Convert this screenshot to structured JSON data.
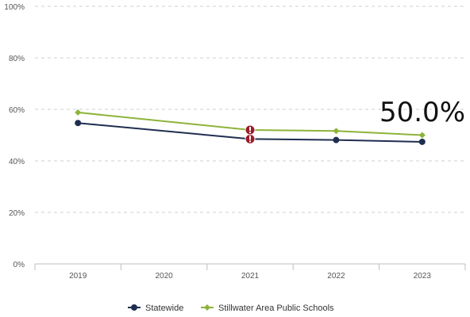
{
  "chart_data": {
    "type": "line",
    "categories": [
      "2019",
      "2020",
      "2021",
      "2022",
      "2023"
    ],
    "y_ticks": [
      "0%",
      "20%",
      "40%",
      "60%",
      "80%",
      "100%"
    ],
    "ylim": [
      0,
      100
    ],
    "grid": true,
    "legend_position": "bottom",
    "series": [
      {
        "name": "Statewide",
        "color": "#1f2d4f",
        "marker": "circle",
        "values": [
          54.7,
          null,
          48.5,
          48.1,
          47.4
        ]
      },
      {
        "name": "Stillwater Area Public Schools",
        "color": "#8db33a",
        "marker": "diamond",
        "values": [
          58.8,
          null,
          52.0,
          51.6,
          50.0
        ]
      }
    ],
    "warning_points": [
      {
        "category": "2021",
        "series": 0
      },
      {
        "category": "2021",
        "series": 1
      }
    ],
    "warning_color": "#9b1c2a",
    "annotation": {
      "text": "50.0%"
    }
  }
}
